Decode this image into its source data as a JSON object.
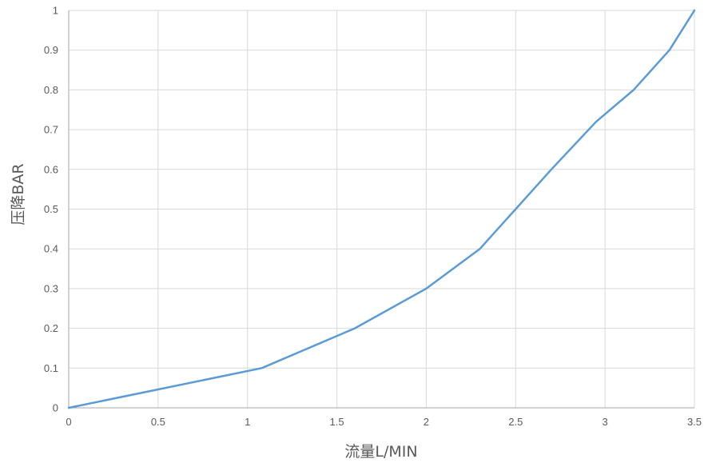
{
  "chart_data": {
    "type": "line",
    "title": "",
    "xlabel": "流量L/MIN",
    "ylabel": "压降BAR",
    "xlim": [
      0,
      3.5
    ],
    "ylim": [
      0,
      1
    ],
    "x_ticks": [
      "0",
      "0.5",
      "1",
      "1.5",
      "2",
      "2.5",
      "3",
      "3.5"
    ],
    "y_ticks": [
      "0",
      "0.1",
      "0.2",
      "0.3",
      "0.4",
      "0.5",
      "0.6",
      "0.7",
      "0.8",
      "0.9",
      "1"
    ],
    "grid": true,
    "legend": "none",
    "series": [
      {
        "color": "#5b9bd5",
        "points": [
          {
            "x": 0,
            "y": 0
          },
          {
            "x": 1.08,
            "y": 0.1
          },
          {
            "x": 1.6,
            "y": 0.2
          },
          {
            "x": 2.0,
            "y": 0.3
          },
          {
            "x": 2.3,
            "y": 0.4
          },
          {
            "x": 2.5,
            "y": 0.5
          },
          {
            "x": 2.7,
            "y": 0.6
          },
          {
            "x": 2.95,
            "y": 0.72
          },
          {
            "x": 3.16,
            "y": 0.8
          },
          {
            "x": 3.36,
            "y": 0.9
          },
          {
            "x": 3.5,
            "y": 1.0
          }
        ]
      }
    ]
  }
}
